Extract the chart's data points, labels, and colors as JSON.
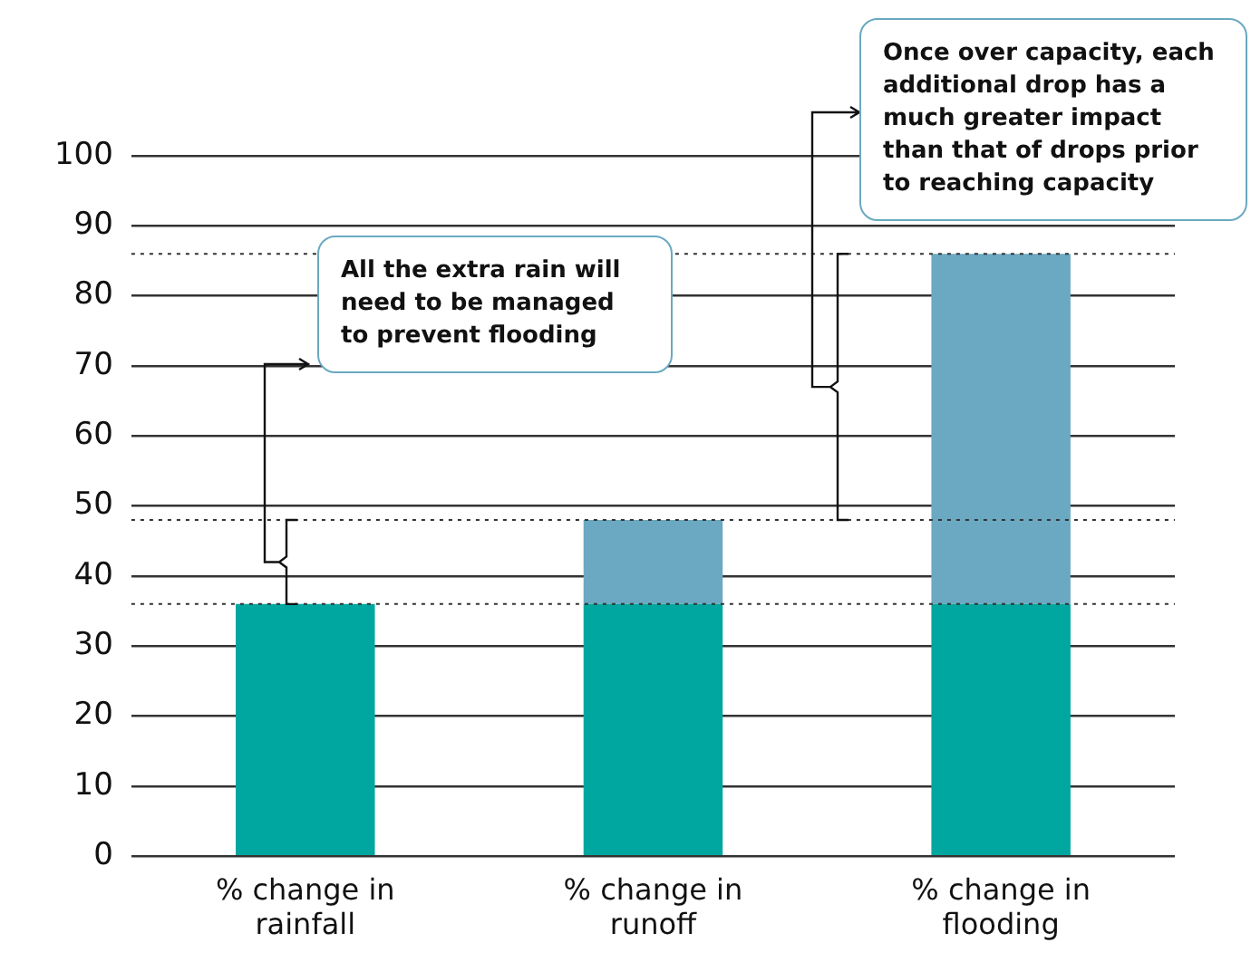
{
  "chart_data": {
    "type": "bar",
    "stacked": true,
    "categories": [
      "% change in rainfall",
      "% change in runoff",
      "% change in flooding"
    ],
    "series": [
      {
        "color": "#00a6a0",
        "values": [
          36,
          36,
          36
        ]
      },
      {
        "color": "#6aa9c1",
        "values": [
          0,
          12,
          50
        ]
      }
    ],
    "ylim": [
      0,
      100
    ],
    "yticks": [
      0,
      10,
      20,
      30,
      40,
      50,
      60,
      70,
      80,
      90,
      100
    ],
    "grid": "y",
    "legend": false,
    "ref_lines": [
      {
        "axis": "y",
        "value": 36,
        "line_style": "dotted",
        "color": "#333333"
      },
      {
        "axis": "y",
        "value": 48,
        "line_style": "dotted",
        "color": "#333333"
      },
      {
        "axis": "y",
        "value": 86,
        "line_style": "dotted",
        "color": "#333333"
      }
    ],
    "annotations": [
      "All the extra rain will need to be managed to prevent flooding",
      "Once over capacity, each additional drop has a much greater impact than that of drops prior to reaching capacity"
    ]
  }
}
